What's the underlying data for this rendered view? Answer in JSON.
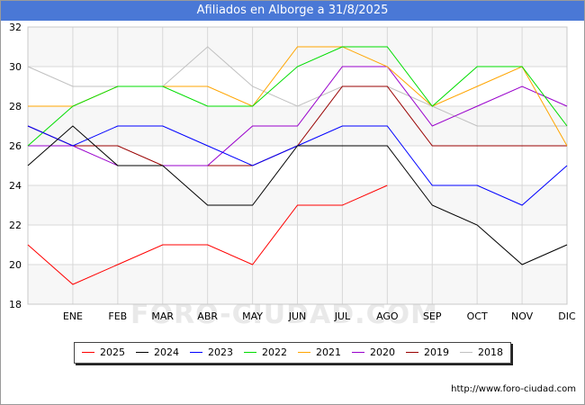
{
  "header": {
    "title": "Afiliados en Alborge a 31/8/2025"
  },
  "footer": {
    "url": "http://www.foro-ciudad.com"
  },
  "watermark": {
    "text": "FORO-CIUDAD.COM"
  },
  "chart_data": {
    "type": "line",
    "title": "Afiliados en Alborge a 31/8/2025",
    "xlabel": "",
    "ylabel": "",
    "categories": [
      "",
      "ENE",
      "FEB",
      "MAR",
      "ABR",
      "MAY",
      "JUN",
      "JUL",
      "AGO",
      "SEP",
      "OCT",
      "NOV",
      "DIC"
    ],
    "ylim": [
      18,
      32
    ],
    "yticks": [
      18,
      20,
      22,
      24,
      26,
      28,
      30,
      32
    ],
    "grid": true,
    "legend_position": "bottom",
    "series": [
      {
        "name": "2025",
        "color": "#ff0000",
        "values": [
          21,
          19,
          20,
          21,
          21,
          20,
          23,
          23,
          24,
          null,
          null,
          null,
          null
        ]
      },
      {
        "name": "2024",
        "color": "#000000",
        "values": [
          25,
          27,
          25,
          25,
          23,
          23,
          26,
          26,
          26,
          23,
          22,
          20,
          21
        ]
      },
      {
        "name": "2023",
        "color": "#0000ff",
        "values": [
          27,
          26,
          27,
          27,
          26,
          25,
          26,
          27,
          27,
          24,
          24,
          23,
          25
        ]
      },
      {
        "name": "2022",
        "color": "#00dd00",
        "values": [
          26,
          28,
          29,
          29,
          28,
          28,
          30,
          31,
          31,
          28,
          30,
          30,
          27
        ]
      },
      {
        "name": "2021",
        "color": "#ffa500",
        "values": [
          28,
          28,
          29,
          29,
          29,
          28,
          31,
          31,
          30,
          28,
          29,
          30,
          26
        ]
      },
      {
        "name": "2020",
        "color": "#9900cc",
        "values": [
          26,
          26,
          25,
          25,
          25,
          27,
          27,
          30,
          30,
          27,
          28,
          29,
          28
        ]
      },
      {
        "name": "2019",
        "color": "#990000",
        "values": [
          27,
          26,
          26,
          25,
          25,
          25,
          26,
          29,
          29,
          26,
          26,
          26,
          26
        ]
      },
      {
        "name": "2018",
        "color": "#c0c0c0",
        "values": [
          30,
          29,
          29,
          29,
          31,
          29,
          28,
          29,
          29,
          28,
          27,
          27,
          27
        ]
      }
    ]
  }
}
